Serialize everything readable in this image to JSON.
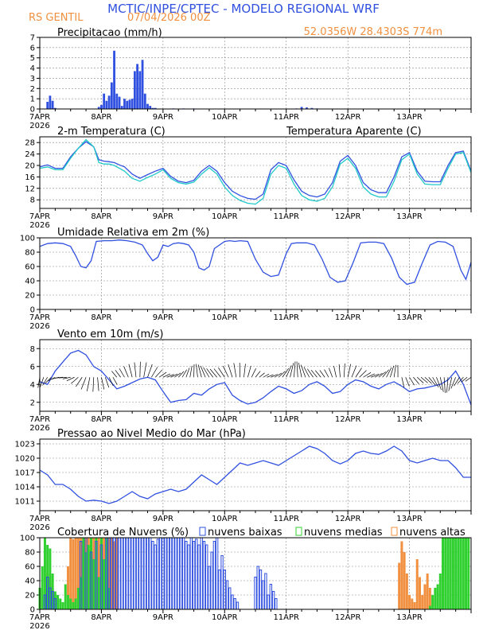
{
  "header": {
    "title": "MCTIC/INPE/CPTEC - MODELO REGIONAL WRF",
    "location": "RS GENTIL",
    "run": "07/04/2026 00Z",
    "coords": "52.0356W 28.4303S 774m"
  },
  "x_axis": {
    "days": [
      "7APR",
      "8APR",
      "9APR",
      "10APR",
      "11APR",
      "12APR",
      "13APR"
    ],
    "year": "2026",
    "hours_per_day": 24,
    "total_hours": 168
  },
  "colors": {
    "blue": "#3050e0",
    "cyan": "#20c8c8",
    "green": "#30d030",
    "orange": "#f09040",
    "header_blue": "#3050e0",
    "header_orange": "#f09040",
    "grid": "#888888"
  },
  "chart_data": [
    {
      "type": "bar",
      "title": "Precipitacao (mm/h)",
      "ylim": [
        0,
        7
      ],
      "yticks": [
        0,
        1,
        2,
        3,
        4,
        5,
        6,
        7
      ],
      "series": [
        {
          "x": [
            3,
            4,
            5,
            6,
            23,
            24,
            25,
            26,
            27,
            28,
            29,
            30,
            31,
            32,
            33,
            34,
            35,
            36,
            37,
            38,
            39,
            40,
            41,
            42,
            43,
            44,
            45,
            52,
            56,
            60,
            100,
            102,
            104,
            106,
            108
          ],
          "values": [
            0.7,
            1.3,
            0.8,
            0.1,
            0.2,
            0.4,
            1.5,
            0.8,
            1.3,
            2.6,
            5.7,
            1.5,
            1.2,
            0.3,
            1.0,
            0.8,
            0.9,
            1.0,
            3.7,
            4.4,
            3.7,
            4.8,
            1.5,
            0.5,
            0.3,
            0.1,
            0.1,
            0.05,
            0.05,
            0.05,
            0.05,
            0.2,
            0.15,
            0.1,
            0.05
          ]
        }
      ]
    },
    {
      "type": "line",
      "title": "2-m Temperatura (C)",
      "legend": "Temperatura Aparente (C)",
      "ylim": [
        5,
        30
      ],
      "yticks": [
        8,
        12,
        16,
        20,
        24,
        28
      ],
      "series": [
        {
          "x": [
            0,
            3,
            6,
            9,
            12,
            15,
            18,
            21,
            23,
            25,
            27,
            29,
            31,
            33,
            36,
            39,
            42,
            45,
            48,
            51,
            54,
            57,
            60,
            63,
            66,
            69,
            72,
            75,
            78,
            81,
            84,
            87,
            90,
            93,
            96,
            99,
            102,
            105,
            108,
            111,
            114,
            117,
            120,
            123,
            126,
            129,
            132,
            135,
            138,
            141,
            144,
            147,
            150,
            153,
            156,
            159,
            162,
            165,
            168
          ],
          "values": [
            19.5,
            20.2,
            19.0,
            19.0,
            23.0,
            26.0,
            28.3,
            26.5,
            22.0,
            21.5,
            21.3,
            21.0,
            20.2,
            19.5,
            17.0,
            15.5,
            16.8,
            18.0,
            19.0,
            16.2,
            14.5,
            14.0,
            14.8,
            18.0,
            20.0,
            18.0,
            14.0,
            11.0,
            9.5,
            8.5,
            8.2,
            10.0,
            18.5,
            21.0,
            20.0,
            15.0,
            11.0,
            9.5,
            9.0,
            10.0,
            14.0,
            21.5,
            23.5,
            20.0,
            14.0,
            11.5,
            10.5,
            10.5,
            16.0,
            23.0,
            24.5,
            18.0,
            14.5,
            14.3,
            14.3,
            20.0,
            24.5,
            25.0,
            18.0
          ]
        },
        {
          "x": [
            0,
            3,
            6,
            9,
            12,
            15,
            18,
            21,
            23,
            25,
            27,
            29,
            31,
            33,
            36,
            39,
            42,
            45,
            48,
            51,
            54,
            57,
            60,
            63,
            66,
            69,
            72,
            75,
            78,
            81,
            84,
            87,
            90,
            93,
            96,
            99,
            102,
            105,
            108,
            111,
            114,
            117,
            120,
            123,
            126,
            129,
            132,
            135,
            138,
            141,
            144,
            147,
            150,
            153,
            156,
            159,
            162,
            165,
            168
          ],
          "values": [
            19.0,
            19.5,
            18.5,
            18.5,
            22.5,
            26.0,
            29.0,
            26.5,
            21.0,
            20.5,
            20.5,
            20.0,
            19.0,
            18.0,
            15.5,
            14.5,
            15.8,
            17.0,
            18.5,
            15.5,
            14.0,
            13.5,
            14.2,
            17.0,
            19.2,
            17.0,
            12.5,
            9.5,
            7.8,
            6.8,
            6.5,
            8.5,
            17.0,
            20.0,
            19.0,
            13.5,
            9.5,
            8.0,
            7.5,
            8.5,
            12.5,
            20.5,
            22.5,
            19.0,
            12.5,
            10.0,
            9.0,
            9.0,
            14.5,
            22.0,
            24.0,
            17.0,
            13.5,
            13.3,
            13.3,
            19.0,
            24.0,
            24.5,
            17.5
          ]
        }
      ]
    },
    {
      "type": "line",
      "title": "Umidade Relativa em 2m (%)",
      "ylim": [
        0,
        100
      ],
      "yticks": [
        0,
        20,
        40,
        60,
        80,
        100
      ],
      "series": [
        {
          "x": [
            0,
            3,
            6,
            9,
            12,
            14,
            16,
            18,
            20,
            22,
            25,
            28,
            31,
            34,
            37,
            40,
            42,
            44,
            46,
            48,
            50,
            52,
            54,
            56,
            58,
            60,
            62,
            64,
            66,
            68,
            70,
            72,
            74,
            76,
            78,
            81,
            84,
            87,
            90,
            93,
            96,
            98,
            100,
            102,
            104,
            107,
            110,
            113,
            116,
            119,
            122,
            125,
            128,
            131,
            134,
            137,
            140,
            143,
            146,
            149,
            152,
            155,
            158,
            161,
            164,
            166,
            168
          ],
          "values": [
            88,
            92,
            93,
            92,
            88,
            75,
            60,
            58,
            68,
            95,
            96,
            96,
            97,
            96,
            94,
            90,
            78,
            68,
            73,
            90,
            88,
            92,
            93,
            92,
            90,
            80,
            58,
            55,
            60,
            85,
            90,
            95,
            96,
            95,
            96,
            95,
            70,
            52,
            46,
            48,
            78,
            92,
            93,
            93,
            93,
            90,
            70,
            45,
            38,
            40,
            65,
            93,
            94,
            94,
            92,
            72,
            45,
            35,
            38,
            65,
            90,
            95,
            94,
            88,
            55,
            42,
            66
          ]
        }
      ]
    },
    {
      "type": "line",
      "title": "Vento em 10m (m/s)",
      "ylim": [
        1,
        9
      ],
      "yticks": [
        2,
        4,
        6,
        8
      ],
      "series": [
        {
          "x": [
            0,
            3,
            6,
            9,
            12,
            15,
            18,
            21,
            24,
            27,
            30,
            33,
            36,
            39,
            42,
            45,
            48,
            51,
            54,
            57,
            60,
            63,
            66,
            69,
            72,
            75,
            78,
            81,
            84,
            87,
            90,
            93,
            96,
            99,
            102,
            105,
            108,
            111,
            114,
            117,
            120,
            123,
            126,
            129,
            132,
            135,
            138,
            141,
            144,
            147,
            150,
            153,
            156,
            159,
            162,
            165,
            168
          ],
          "values": [
            4.3,
            4.0,
            5.5,
            6.5,
            7.5,
            7.8,
            7.3,
            6.0,
            5.5,
            4.5,
            3.5,
            3.8,
            4.2,
            4.6,
            4.8,
            4.5,
            3.2,
            2.0,
            2.2,
            2.3,
            3.0,
            2.8,
            3.5,
            4.0,
            4.2,
            2.8,
            2.2,
            1.8,
            2.0,
            2.5,
            3.2,
            3.8,
            3.5,
            3.0,
            3.3,
            4.0,
            4.3,
            3.8,
            3.0,
            3.2,
            4.0,
            4.5,
            4.3,
            3.8,
            3.5,
            4.0,
            4.3,
            3.8,
            3.2,
            3.5,
            3.6,
            3.8,
            4.0,
            4.5,
            5.5,
            4.0,
            1.7
          ]
        }
      ]
    },
    {
      "type": "line",
      "title": "Pressao ao Nivel Medio do Mar (hPa)",
      "ylim": [
        1009,
        1024
      ],
      "yticks": [
        1011,
        1014,
        1017,
        1020,
        1023
      ],
      "series": [
        {
          "x": [
            0,
            3,
            6,
            9,
            12,
            15,
            18,
            21,
            24,
            27,
            30,
            33,
            36,
            39,
            42,
            45,
            48,
            51,
            54,
            57,
            60,
            63,
            66,
            69,
            72,
            75,
            78,
            81,
            84,
            87,
            90,
            93,
            96,
            99,
            102,
            105,
            108,
            111,
            114,
            117,
            120,
            123,
            126,
            129,
            132,
            135,
            138,
            141,
            144,
            147,
            150,
            153,
            156,
            159,
            162,
            165,
            168
          ],
          "values": [
            1017.5,
            1016.5,
            1014.5,
            1014.5,
            1013.5,
            1012.0,
            1011.0,
            1011.2,
            1011.0,
            1010.5,
            1011.0,
            1012.0,
            1013.0,
            1012.0,
            1011.5,
            1012.5,
            1013.0,
            1013.5,
            1013.0,
            1013.5,
            1015.0,
            1016.5,
            1015.5,
            1014.5,
            1016.0,
            1017.5,
            1019.0,
            1018.5,
            1019.0,
            1019.5,
            1019.0,
            1018.5,
            1019.5,
            1020.5,
            1021.5,
            1022.5,
            1022.0,
            1021.0,
            1019.5,
            1018.8,
            1019.5,
            1021.0,
            1021.5,
            1021.0,
            1020.8,
            1021.5,
            1022.5,
            1021.5,
            1019.5,
            1019.0,
            1019.5,
            1020.0,
            1019.5,
            1019.5,
            1018.0,
            1016.0,
            1016.0
          ]
        }
      ]
    },
    {
      "type": "bar",
      "title": "Cobertura de Nuvens (%)",
      "ylim": [
        0,
        100
      ],
      "yticks": [
        0,
        20,
        40,
        60,
        80,
        100
      ],
      "legend": [
        "nuvens baixas",
        "nuvens medias",
        "nuvens altas"
      ],
      "series": [
        {
          "name": "nuvens baixas",
          "x": [
            2,
            3,
            4,
            5,
            6,
            16,
            18,
            20,
            22,
            24,
            26,
            27,
            28,
            29,
            30,
            31,
            32,
            33,
            34,
            35,
            36,
            37,
            38,
            39,
            40,
            41,
            42,
            43,
            44,
            45,
            46,
            47,
            48,
            49,
            50,
            51,
            52,
            53,
            54,
            55,
            56,
            57,
            58,
            59,
            60,
            61,
            62,
            63,
            64,
            65,
            66,
            67,
            68,
            69,
            70,
            71,
            72,
            73,
            74,
            75,
            76,
            77,
            84,
            85,
            86,
            87,
            88,
            89,
            90,
            91,
            92
          ],
          "values": [
            20,
            45,
            30,
            25,
            15,
            95,
            100,
            80,
            95,
            90,
            100,
            100,
            100,
            100,
            100,
            100,
            100,
            100,
            100,
            100,
            100,
            100,
            100,
            100,
            100,
            100,
            100,
            100,
            95,
            90,
            98,
            100,
            100,
            100,
            100,
            100,
            100,
            100,
            100,
            100,
            100,
            95,
            90,
            100,
            95,
            98,
            90,
            100,
            95,
            90,
            60,
            80,
            95,
            100,
            55,
            75,
            55,
            40,
            30,
            20,
            15,
            10,
            45,
            60,
            55,
            40,
            50,
            20,
            35,
            25,
            15
          ]
        },
        {
          "name": "nuvens medias",
          "x": [
            0,
            1,
            2,
            3,
            4,
            5,
            6,
            7,
            8,
            9,
            10,
            11,
            12,
            13,
            14,
            15,
            16,
            17,
            18,
            19,
            20,
            21,
            22,
            23,
            24,
            25,
            26,
            27,
            152,
            153,
            154,
            155,
            156,
            157,
            158,
            159,
            160,
            161,
            162,
            163,
            164,
            165,
            166,
            167
          ],
          "values": [
            30,
            60,
            100,
            90,
            85,
            50,
            25,
            20,
            15,
            10,
            35,
            20,
            15,
            10,
            15,
            30,
            45,
            100,
            80,
            90,
            100,
            70,
            100,
            45,
            100,
            70,
            100,
            30,
            5,
            20,
            30,
            35,
            50,
            100,
            100,
            100,
            100,
            100,
            100,
            100,
            100,
            100,
            100,
            100
          ]
        },
        {
          "name": "nuvens altas",
          "x": [
            2,
            3,
            4,
            5,
            11,
            12,
            13,
            14,
            15,
            16,
            17,
            18,
            19,
            20,
            21,
            22,
            23,
            24,
            25,
            26,
            27,
            28,
            29,
            30,
            140,
            141,
            142,
            143,
            144,
            145,
            146,
            147,
            148,
            149,
            150,
            151,
            152
          ],
          "values": [
            25,
            50,
            40,
            30,
            60,
            100,
            98,
            100,
            100,
            100,
            100,
            100,
            100,
            100,
            100,
            100,
            100,
            100,
            100,
            100,
            100,
            100,
            95,
            100,
            65,
            95,
            80,
            50,
            20,
            15,
            10,
            70,
            45,
            20,
            35,
            50,
            30
          ]
        }
      ]
    }
  ]
}
